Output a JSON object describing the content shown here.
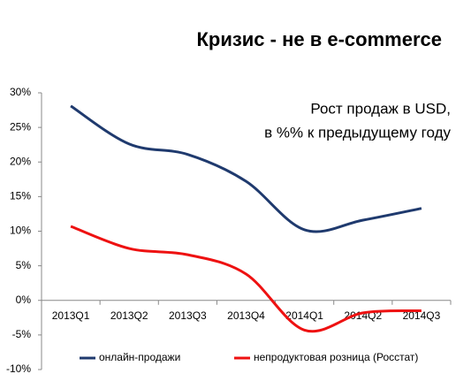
{
  "chart_data": {
    "type": "line",
    "title": "Кризис - не в e-commerce",
    "annotation": [
      "Рост продаж в USD,",
      "в %% к предыдущему году"
    ],
    "categories": [
      "2013Q1",
      "2013Q2",
      "2013Q3",
      "2013Q4",
      "2014Q1",
      "2014Q2",
      "2014Q3"
    ],
    "series": [
      {
        "name": "онлайн-продажи",
        "color": "#1f3a6e",
        "values": [
          28.1,
          22.6,
          21.1,
          17.2,
          10.2,
          11.6,
          13.3
        ]
      },
      {
        "name": "непродуктовая розница (Росстат)",
        "color": "#ee1111",
        "values": [
          10.7,
          7.5,
          6.6,
          3.8,
          -4.3,
          -1.8,
          -1.5
        ]
      }
    ],
    "ylim": [
      -10,
      30
    ],
    "yticks": [
      {
        "value": -10,
        "label": "-10%"
      },
      {
        "value": -5,
        "label": "-5%"
      },
      {
        "value": 0,
        "label": "0%"
      },
      {
        "value": 5,
        "label": "5%"
      },
      {
        "value": 10,
        "label": "10%"
      },
      {
        "value": 15,
        "label": "15%"
      },
      {
        "value": 20,
        "label": "20%"
      },
      {
        "value": 25,
        "label": "25%"
      },
      {
        "value": 30,
        "label": "30%"
      }
    ],
    "grid": false,
    "smooth": true,
    "legend": "bottom"
  }
}
